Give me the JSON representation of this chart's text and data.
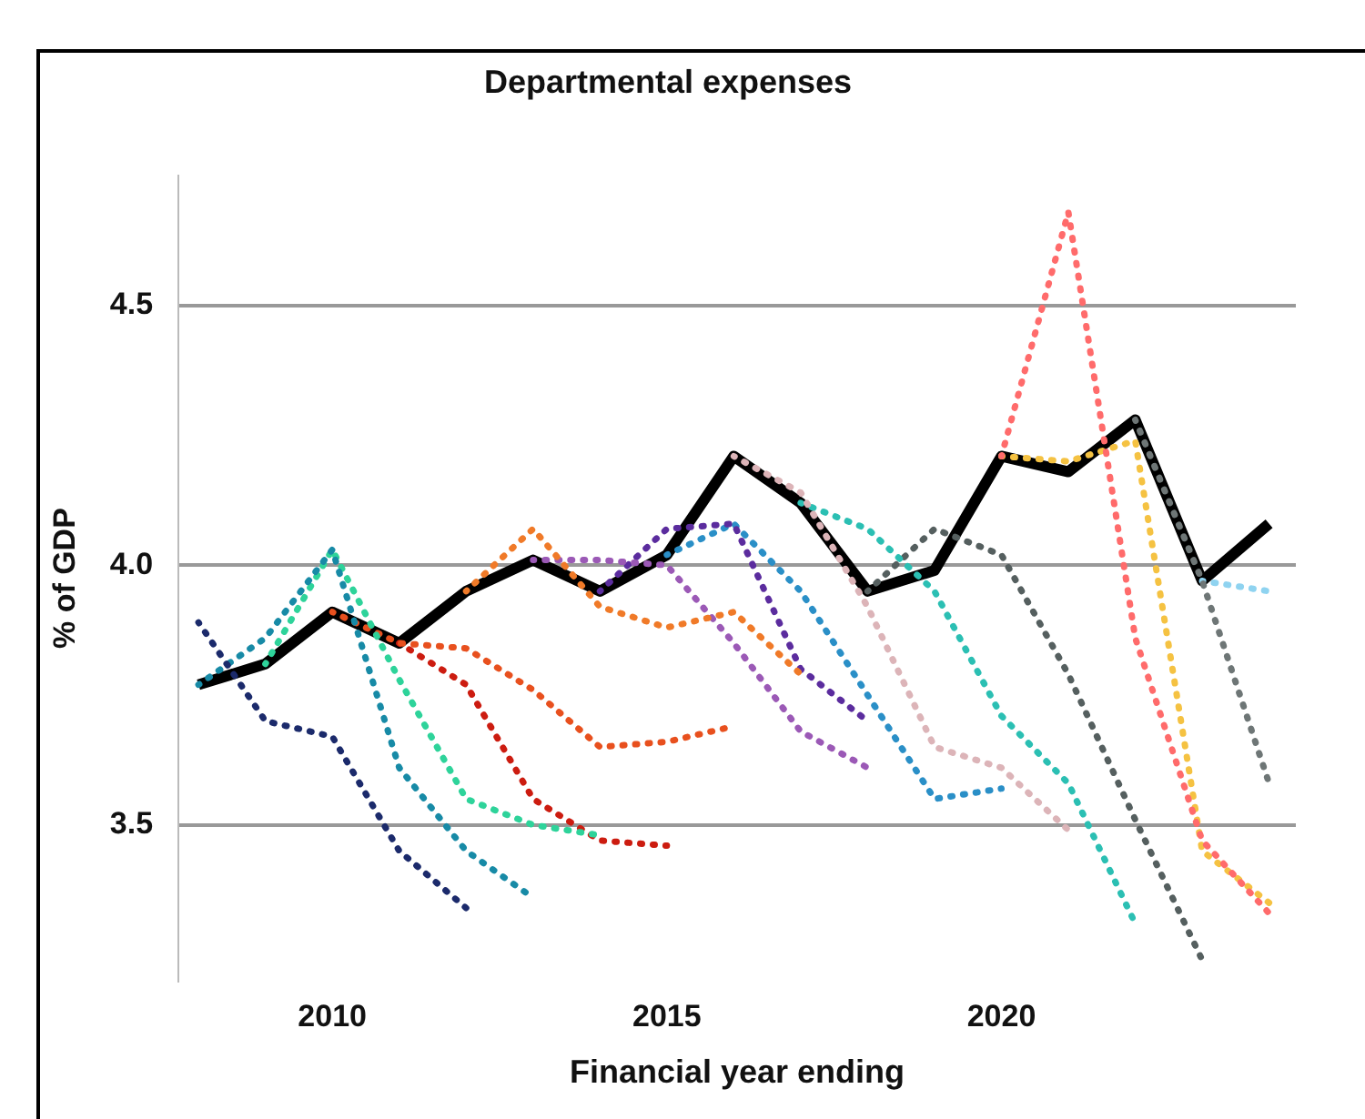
{
  "chart_data": {
    "type": "line",
    "title": "Departmental expenses",
    "xlabel": "Financial year ending",
    "ylabel": "% of GDP",
    "xlim": [
      2007.7,
      2024.4
    ],
    "ylim": [
      3.2,
      4.75
    ],
    "xticks": [
      2010,
      2015,
      2020
    ],
    "yticks": [
      {
        "value": 3.5,
        "label": "3.5"
      },
      {
        "value": 4,
        "label": "4.0"
      },
      {
        "value": 4.5,
        "label": "4.5"
      }
    ],
    "grid": "y",
    "legend": false,
    "marker": "none",
    "series": [
      {
        "color": "#1b2a6b",
        "line_style": "dotted",
        "x": [
          2008,
          2009,
          2010,
          2011,
          2012
        ],
        "values": [
          3.89,
          3.7,
          3.67,
          3.45,
          3.34
        ]
      },
      {
        "color": "#178aa6",
        "line_style": "dotted",
        "x": [
          2008,
          2009,
          2010,
          2011,
          2012,
          2013
        ],
        "values": [
          3.77,
          3.86,
          4.03,
          3.61,
          3.45,
          3.36
        ]
      },
      {
        "color": "#2ed39a",
        "line_style": "dotted",
        "x": [
          2009,
          2010,
          2011,
          2012,
          2013,
          2014
        ],
        "values": [
          3.81,
          4.03,
          3.78,
          3.55,
          3.5,
          3.48
        ]
      },
      {
        "color": "#e8501e",
        "line_style": "dotted",
        "x": [
          2010,
          2011,
          2012,
          2013,
          2014,
          2015,
          2016
        ],
        "values": [
          3.91,
          3.85,
          3.84,
          3.76,
          3.65,
          3.66,
          3.69
        ]
      },
      {
        "color": "#cc1c10",
        "line_style": "dotted",
        "x": [
          2011,
          2012,
          2013,
          2014,
          2015
        ],
        "values": [
          3.85,
          3.77,
          3.55,
          3.47,
          3.46
        ]
      },
      {
        "color": "#f07a28",
        "line_style": "dotted",
        "x": [
          2012,
          2013,
          2014,
          2015,
          2016,
          2017
        ],
        "values": [
          3.95,
          4.07,
          3.92,
          3.88,
          3.91,
          3.79
        ]
      },
      {
        "color": "#9b59b6",
        "line_style": "dotted",
        "x": [
          2013,
          2014,
          2015,
          2016,
          2017,
          2018
        ],
        "values": [
          4.01,
          4.01,
          4.0,
          3.85,
          3.68,
          3.61
        ]
      },
      {
        "color": "#5b2c9e",
        "line_style": "dotted",
        "x": [
          2014,
          2015,
          2016,
          2017,
          2018
        ],
        "values": [
          3.95,
          4.07,
          4.08,
          3.8,
          3.7
        ]
      },
      {
        "color": "#2a8fc7",
        "line_style": "dotted",
        "x": [
          2015,
          2016,
          2017,
          2018,
          2019,
          2020
        ],
        "values": [
          4.02,
          4.08,
          3.95,
          3.75,
          3.55,
          3.57
        ]
      },
      {
        "color": "#dcb4b8",
        "line_style": "dotted",
        "x": [
          2016,
          2017,
          2018,
          2019,
          2020,
          2021
        ],
        "values": [
          4.21,
          4.14,
          3.92,
          3.65,
          3.61,
          3.49
        ]
      },
      {
        "color": "#2bbfb3",
        "line_style": "dotted",
        "x": [
          2017,
          2018,
          2019,
          2020,
          2021,
          2022
        ],
        "values": [
          4.12,
          4.07,
          3.95,
          3.71,
          3.58,
          3.31
        ]
      },
      {
        "color": "#555f5f",
        "line_style": "dotted",
        "x": [
          2018,
          2019,
          2020,
          2021,
          2022,
          2023
        ],
        "values": [
          3.95,
          4.07,
          4.02,
          3.79,
          3.51,
          3.24
        ]
      },
      {
        "color": "#ff6b6b",
        "line_style": "dotted",
        "x": [
          2020,
          2021,
          2022,
          2023,
          2024
        ],
        "values": [
          4.21,
          4.68,
          3.86,
          3.47,
          3.33
        ]
      },
      {
        "color": "#f5c242",
        "line_style": "dotted",
        "x": [
          2020,
          2021,
          2022,
          2023,
          2024
        ],
        "values": [
          4.21,
          4.2,
          4.24,
          3.45,
          3.35
        ]
      },
      {
        "color": "#6e7676",
        "line_style": "dotted",
        "x": [
          2022,
          2023,
          2024
        ],
        "values": [
          4.28,
          3.97,
          3.58
        ]
      },
      {
        "color": "#8fd3f0",
        "line_style": "dotted",
        "x": [
          2023,
          2024
        ],
        "values": [
          3.97,
          3.95
        ]
      },
      {
        "color": "#000000",
        "line_style": "solid",
        "x": [
          2008,
          2009,
          2010,
          2011,
          2012,
          2013,
          2014,
          2015,
          2016,
          2017,
          2018,
          2019,
          2020,
          2021,
          2022,
          2023,
          2024
        ],
        "values": [
          3.77,
          3.81,
          3.91,
          3.85,
          3.95,
          4.01,
          3.95,
          4.02,
          4.21,
          4.12,
          3.95,
          3.99,
          4.21,
          4.18,
          4.28,
          3.97,
          4.08
        ]
      }
    ]
  }
}
